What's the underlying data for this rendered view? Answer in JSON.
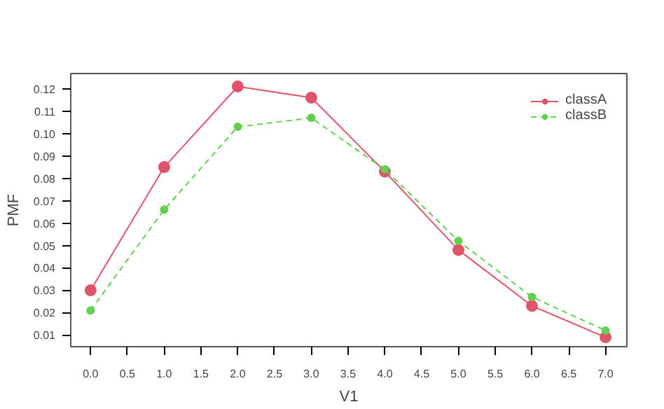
{
  "chart_data": {
    "type": "line",
    "xlabel": "V1",
    "ylabel": "PMF",
    "x": [
      0,
      1,
      2,
      3,
      4,
      5,
      6,
      7
    ],
    "xlim": [
      -0.27,
      7.29
    ],
    "ylim": [
      0.0048,
      0.1268
    ],
    "xticks": [
      {
        "value": 0,
        "label": "0.0"
      },
      0.5,
      {
        "value": 1,
        "label": "1.0"
      },
      1.5,
      {
        "value": 2,
        "label": "2.0"
      },
      2.5,
      {
        "value": 3,
        "label": "3.0"
      },
      3.5,
      {
        "value": 4,
        "label": "4.0"
      },
      4.5,
      {
        "value": 5,
        "label": "5.0"
      },
      5.5,
      {
        "value": 6,
        "label": "6.0"
      },
      6.5,
      {
        "value": 7,
        "label": "7.0"
      }
    ],
    "yticks": [
      0.01,
      0.02,
      0.03,
      0.04,
      0.05,
      0.06,
      0.07,
      0.08,
      0.09,
      {
        "value": 0.1,
        "label": "0.10"
      },
      0.11,
      0.12
    ],
    "grid": false,
    "legend": "top right",
    "marker": "circle",
    "series": [
      {
        "name": "classA",
        "color": "#df536b",
        "line_style": "solid",
        "values": [
          0.03,
          0.085,
          0.121,
          0.116,
          0.083,
          0.048,
          0.023,
          0.009
        ]
      },
      {
        "name": "classB",
        "color": "#61d04f",
        "line_style": "dashed",
        "values": [
          0.021,
          0.066,
          0.103,
          0.107,
          0.084,
          0.052,
          0.027,
          0.012
        ]
      }
    ]
  }
}
